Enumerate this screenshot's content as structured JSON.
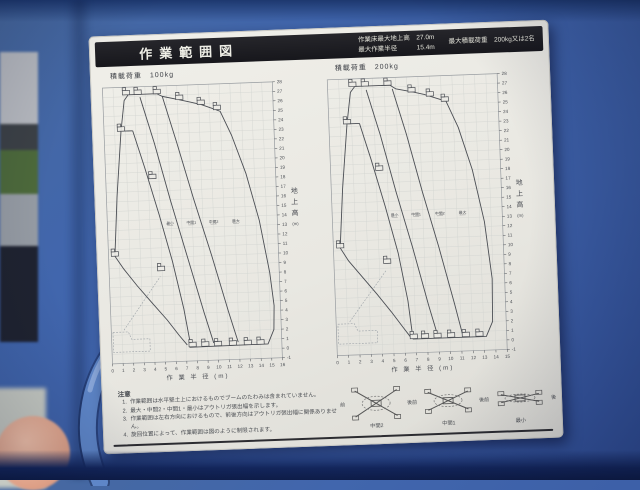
{
  "colors": {
    "machine_blue": "#4166ad",
    "paper": "#eae9e4",
    "titlebar_black": "#1b1b20",
    "ink": "#4b4e54",
    "pipe_blue": "#5e86c8"
  },
  "placard": {
    "title": "作業範囲図",
    "specs": {
      "line1": "作業床最大地上高　27.0m",
      "line2": "最大作業半径　　　15.4m",
      "line3": "最大積載荷重　200kg又は2名"
    }
  },
  "notes": {
    "heading": "注意",
    "items": [
      {
        "num": "1.",
        "text": "作業範囲は水平堅土上におけるものでブームのたわみは含まれていません。"
      },
      {
        "num": "2.",
        "text": "最大・中間2・中間1・最小はアウトリガ張出幅を示します。"
      },
      {
        "num": "3.",
        "text": "作業範囲は左右方向におけるもので、前後方向はアウトリガ張出幅に関係ありません。"
      },
      {
        "num": "4.",
        "text": "旋回位置によって、作業範囲は図のように制限されます。"
      }
    ]
  },
  "outrigger_diagrams": {
    "front_label": "前",
    "rear_label": "後",
    "captions": [
      "中間2",
      "中間1",
      "最小"
    ]
  },
  "chart_data": [
    {
      "type": "line",
      "title": "積載荷重　100kg",
      "xlabel": "作 業 半 径 (m)",
      "ylabel_chars": [
        "地",
        "上",
        "高"
      ],
      "ylabel_unit": "(m)",
      "xlim": [
        0,
        16
      ],
      "ylim": [
        -1,
        28
      ],
      "x_tick_step": 1,
      "y_tick_step": 1,
      "grid": true,
      "series": [
        {
          "id": "envelope-max",
          "name": "最大",
          "points": [
            [
              0.6,
              10.3
            ],
            [
              1.0,
              16.5
            ],
            [
              1.6,
              23.4
            ],
            [
              2.0,
              26.6
            ],
            [
              2.4,
              27.2
            ],
            [
              5.1,
              27.2
            ],
            [
              5.6,
              26.9
            ],
            [
              7.1,
              26.5
            ],
            [
              8.2,
              26.2
            ],
            [
              9.2,
              25.9
            ],
            [
              10.6,
              25.3
            ],
            [
              11.0,
              25.1
            ],
            [
              12.0,
              22.5
            ],
            [
              13.2,
              18.5
            ],
            [
              14.3,
              13.5
            ],
            [
              15.1,
              8.0
            ],
            [
              15.4,
              4.5
            ],
            [
              15.3,
              2.0
            ],
            [
              14.7,
              0.5
            ],
            [
              7.3,
              0.45
            ]
          ]
        },
        {
          "id": "curve-mid2",
          "name": "中間2",
          "points": [
            [
              5.6,
              26.9
            ],
            [
              6.8,
              22.0
            ],
            [
              8.2,
              16.0
            ],
            [
              9.7,
              10.0
            ],
            [
              11.1,
              4.0
            ],
            [
              11.9,
              0.8
            ]
          ]
        },
        {
          "id": "curve-mid1",
          "name": "中間1",
          "points": [
            [
              3.5,
              26.9
            ],
            [
              4.7,
              22.0
            ],
            [
              6.0,
              16.0
            ],
            [
              7.4,
              10.0
            ],
            [
              8.8,
              4.0
            ],
            [
              9.6,
              0.8
            ]
          ]
        },
        {
          "id": "curve-min",
          "name": "最小",
          "points": [
            [
              2.7,
              23.4
            ],
            [
              3.7,
              19.5
            ],
            [
              4.9,
              14.5
            ],
            [
              6.0,
              9.5
            ],
            [
              6.9,
              4.5
            ],
            [
              7.4,
              0.8
            ]
          ]
        },
        {
          "id": "min-top",
          "name": "最小上限",
          "points": [
            [
              1.7,
              23.4
            ],
            [
              2.7,
              23.4
            ]
          ]
        },
        {
          "id": "lower-arc",
          "name": "下限境界",
          "points": [
            [
              0.6,
              10.3
            ],
            [
              1.4,
              8.9
            ],
            [
              2.6,
              7.1
            ],
            [
              3.9,
              5.3
            ],
            [
              5.3,
              3.4
            ],
            [
              6.4,
              1.7
            ],
            [
              7.1,
              0.7
            ]
          ]
        },
        {
          "id": "truck-outline",
          "name": "車両外形",
          "style": "dashed",
          "points": [
            [
              0.15,
              2.3
            ],
            [
              1.6,
              2.3
            ],
            [
              1.9,
              1.5
            ],
            [
              3.6,
              1.5
            ],
            [
              3.6,
              0.2
            ],
            [
              0.15,
              0.2
            ],
            [
              0.15,
              2.3
            ]
          ]
        },
        {
          "id": "boom-guide",
          "name": "基準線",
          "style": "dashed",
          "points": [
            [
              1.2,
              2.5
            ],
            [
              4.8,
              8.0
            ]
          ]
        }
      ],
      "curve_labels": [
        {
          "text": "最小",
          "x": 5.9,
          "y": 13.4
        },
        {
          "text": "中間1",
          "x": 7.9,
          "y": 13.4
        },
        {
          "text": "中間2",
          "x": 10.0,
          "y": 13.4
        },
        {
          "text": "最大",
          "x": 12.1,
          "y": 13.4
        }
      ],
      "markers": [
        [
          2.2,
          27.2
        ],
        [
          3.3,
          27.2
        ],
        [
          5.1,
          27.2
        ],
        [
          7.2,
          26.5
        ],
        [
          9.2,
          25.9
        ],
        [
          10.7,
          25.3
        ],
        [
          1.6,
          23.4
        ],
        [
          0.6,
          10.3
        ],
        [
          4.4,
          18.3
        ],
        [
          4.9,
          8.6
        ],
        [
          7.6,
          0.5
        ],
        [
          8.8,
          0.5
        ],
        [
          10.0,
          0.5
        ],
        [
          11.4,
          0.5
        ],
        [
          12.8,
          0.5
        ],
        [
          14.0,
          0.5
        ]
      ]
    },
    {
      "type": "line",
      "title": "積載荷重　200kg",
      "xlabel": "作 業 半 径 (m)",
      "ylabel_chars": [
        "地",
        "上",
        "高"
      ],
      "ylabel_unit": "(m)",
      "xlim": [
        0,
        15
      ],
      "ylim": [
        -1,
        28
      ],
      "x_tick_step": 1,
      "y_tick_step": 1,
      "grid": true,
      "series": [
        {
          "id": "envelope-max",
          "name": "最大",
          "points": [
            [
              0.6,
              10.3
            ],
            [
              1.0,
              16.5
            ],
            [
              1.6,
              23.3
            ],
            [
              2.0,
              26.6
            ],
            [
              2.4,
              27.2
            ],
            [
              5.5,
              27.2
            ],
            [
              6.0,
              26.8
            ],
            [
              7.5,
              26.4
            ],
            [
              8.5,
              26.1
            ],
            [
              9.2,
              25.8
            ],
            [
              10.4,
              25.3
            ],
            [
              11.4,
              22.5
            ],
            [
              12.5,
              18.0
            ],
            [
              13.4,
              12.5
            ],
            [
              13.9,
              6.5
            ],
            [
              13.8,
              2.0
            ],
            [
              13.2,
              0.45
            ],
            [
              6.7,
              0.45
            ]
          ]
        },
        {
          "id": "curve-mid2",
          "name": "中間2",
          "points": [
            [
              5.7,
              26.8
            ],
            [
              6.8,
              22.0
            ],
            [
              8.0,
              16.0
            ],
            [
              9.3,
              10.0
            ],
            [
              10.5,
              4.0
            ],
            [
              11.1,
              0.8
            ]
          ]
        },
        {
          "id": "curve-mid1",
          "name": "中間1",
          "points": [
            [
              3.4,
              26.8
            ],
            [
              4.5,
              22.0
            ],
            [
              5.7,
              16.0
            ],
            [
              7.0,
              10.0
            ],
            [
              8.2,
              4.0
            ],
            [
              8.9,
              0.8
            ]
          ]
        },
        {
          "id": "curve-min",
          "name": "最小",
          "points": [
            [
              2.7,
              23.3
            ],
            [
              3.6,
              19.5
            ],
            [
              4.7,
              14.5
            ],
            [
              5.7,
              9.5
            ],
            [
              6.4,
              4.5
            ],
            [
              6.7,
              0.8
            ]
          ]
        },
        {
          "id": "min-top",
          "name": "最小上限",
          "points": [
            [
              1.7,
              23.3
            ],
            [
              2.7,
              23.3
            ]
          ]
        },
        {
          "id": "lower-arc",
          "name": "下限境界",
          "points": [
            [
              0.6,
              10.3
            ],
            [
              1.3,
              8.9
            ],
            [
              2.5,
              7.1
            ],
            [
              3.7,
              5.3
            ],
            [
              4.9,
              3.4
            ],
            [
              5.9,
              1.7
            ],
            [
              6.5,
              0.7
            ]
          ]
        },
        {
          "id": "truck-outline",
          "name": "車両外形",
          "style": "dashed",
          "points": [
            [
              0.15,
              2.3
            ],
            [
              1.6,
              2.3
            ],
            [
              1.9,
              1.5
            ],
            [
              3.6,
              1.5
            ],
            [
              3.6,
              0.2
            ],
            [
              0.15,
              0.2
            ],
            [
              0.15,
              2.3
            ]
          ]
        },
        {
          "id": "boom-guide",
          "name": "基準線",
          "style": "dashed",
          "points": [
            [
              1.2,
              2.5
            ],
            [
              4.6,
              7.8
            ]
          ]
        }
      ],
      "curve_labels": [
        {
          "text": "最小",
          "x": 5.5,
          "y": 13.4
        },
        {
          "text": "中間1",
          "x": 7.4,
          "y": 13.4
        },
        {
          "text": "中間2",
          "x": 9.5,
          "y": 13.4
        },
        {
          "text": "最大",
          "x": 11.5,
          "y": 13.4
        }
      ],
      "markers": [
        [
          2.2,
          27.2
        ],
        [
          3.3,
          27.2
        ],
        [
          5.3,
          27.2
        ],
        [
          7.4,
          26.4
        ],
        [
          9.0,
          25.9
        ],
        [
          10.3,
          25.3
        ],
        [
          1.6,
          23.3
        ],
        [
          0.6,
          10.3
        ],
        [
          4.3,
          18.3
        ],
        [
          4.7,
          8.5
        ],
        [
          6.8,
          0.5
        ],
        [
          7.8,
          0.5
        ],
        [
          8.9,
          0.5
        ],
        [
          10.1,
          0.5
        ],
        [
          11.4,
          0.5
        ],
        [
          12.6,
          0.5
        ]
      ]
    }
  ]
}
